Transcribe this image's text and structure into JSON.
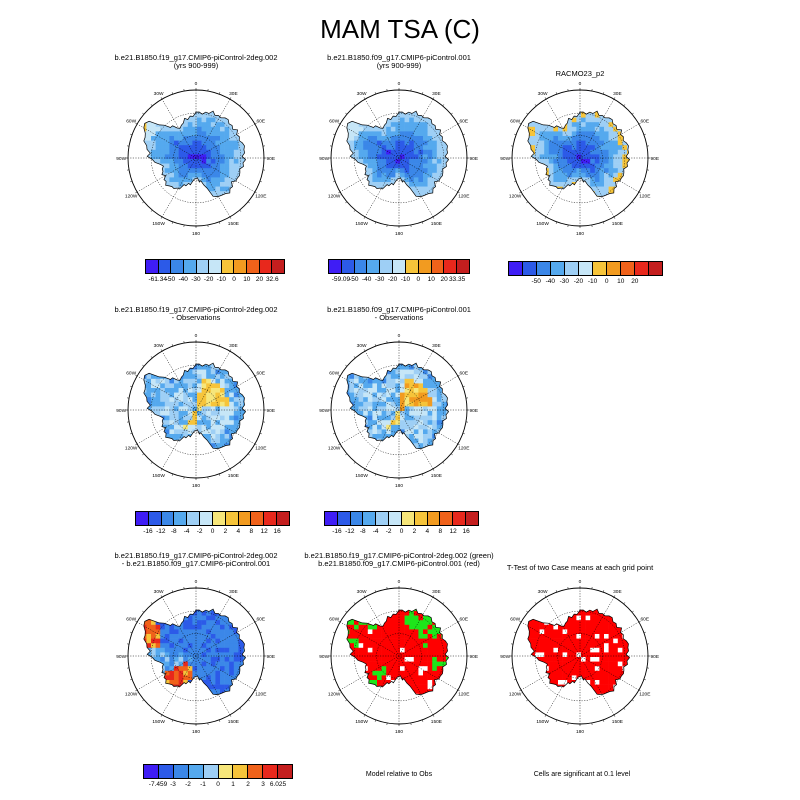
{
  "page": {
    "title": "MAM TSA (C)"
  },
  "palettes": {
    "abs": [
      "#3f1df5",
      "#2c5ae8",
      "#3b87e8",
      "#55a9ee",
      "#9ecff5",
      "#c6e6f7",
      "#f6c43a",
      "#f29b20",
      "#f0621a",
      "#e8281c",
      "#c41e1e"
    ],
    "diff": [
      "#3f1df5",
      "#2c5ae8",
      "#3b87e8",
      "#55a9ee",
      "#9ecff5",
      "#c6e6f7",
      "#f6e67a",
      "#f6c43a",
      "#f29b20",
      "#f0621a",
      "#e8281c",
      "#c41e1e"
    ],
    "ttest": [
      "#3f1df5",
      "#2c5ae8",
      "#3b87e8",
      "#55a9ee",
      "#9ecff5",
      "#f6e67a",
      "#f6c43a",
      "#f0621a",
      "#e8281c",
      "#c41e1e"
    ]
  },
  "chart_data": [
    {
      "type": "heatmap",
      "map": "polar-stereographic-south",
      "title_lines": [
        "b.e21.B1850.f19_g17.CMIP6-piControl-2deg.002",
        "(yrs 900-999)"
      ],
      "field": "model1",
      "colorbar": {
        "palette": "abs",
        "labels": [
          "-61.34",
          "-50",
          "-40",
          "-30",
          "-20",
          "-10",
          "0",
          "10",
          "20",
          "32.6"
        ]
      },
      "lon_labels": [
        "0",
        "30E",
        "60E",
        "90E",
        "120E",
        "150E",
        "180",
        "150W",
        "120W",
        "90W",
        "60W",
        "30W"
      ]
    },
    {
      "type": "heatmap",
      "map": "polar-stereographic-south",
      "title_lines": [
        "b.e21.B1850.f09_g17.CMIP6-piControl.001",
        "(yrs 900-999)"
      ],
      "field": "model2",
      "colorbar": {
        "palette": "abs",
        "labels": [
          "-59.09",
          "-50",
          "-40",
          "-30",
          "-20",
          "-10",
          "0",
          "10",
          "20",
          "33.35"
        ]
      },
      "lon_labels": [
        "0",
        "30E",
        "60E",
        "90E",
        "120E",
        "150E",
        "180",
        "150W",
        "120W",
        "90W",
        "60W",
        "30W"
      ]
    },
    {
      "type": "heatmap",
      "map": "polar-stereographic-south",
      "title_lines": [
        "RACMO23_p2"
      ],
      "field": "obs",
      "colorbar": {
        "palette": "abs",
        "labels": [
          "-50",
          "-40",
          "-30",
          "-20",
          "-10",
          "0",
          "10",
          "20"
        ]
      },
      "lon_labels": [
        "0",
        "30E",
        "60E",
        "90E",
        "120E",
        "150E",
        "180",
        "150W",
        "120W",
        "90W",
        "60W",
        "30W"
      ]
    },
    {
      "type": "heatmap",
      "map": "polar-stereographic-south",
      "title_lines": [
        "b.e21.B1850.f19_g17.CMIP6-piControl-2deg.002",
        " - Observations"
      ],
      "field": "bias1",
      "colorbar": {
        "palette": "diff",
        "labels": [
          "-16",
          "-12",
          "-8",
          "-4",
          "-2",
          "0",
          "2",
          "4",
          "8",
          "12",
          "16"
        ]
      },
      "lon_labels": [
        "0",
        "30E",
        "60E",
        "90E",
        "120E",
        "150E",
        "180",
        "150W",
        "120W",
        "90W",
        "60W",
        "30W"
      ]
    },
    {
      "type": "heatmap",
      "map": "polar-stereographic-south",
      "title_lines": [
        "b.e21.B1850.f09_g17.CMIP6-piControl.001",
        " - Observations"
      ],
      "field": "bias2",
      "colorbar": {
        "palette": "diff",
        "labels": [
          "-16",
          "-12",
          "-8",
          "-4",
          "-2",
          "0",
          "2",
          "4",
          "8",
          "12",
          "16"
        ]
      },
      "lon_labels": [
        "0",
        "30E",
        "60E",
        "90E",
        "120E",
        "150E",
        "180",
        "150W",
        "120W",
        "90W",
        "60W",
        "30W"
      ]
    },
    {
      "type": "heatmap",
      "map": "polar-stereographic-south",
      "title_lines": [
        "b.e21.B1850.f19_g17.CMIP6-piControl-2deg.002",
        " - b.e21.B1850.f09_g17.CMIP6-piControl.001"
      ],
      "field": "diff",
      "colorbar": {
        "palette": "ttest",
        "labels": [
          "-7.459",
          "-3",
          "-2",
          "-1",
          "0",
          "1",
          "2",
          "3",
          "6.025"
        ]
      },
      "lon_labels": [
        "0",
        "30E",
        "60E",
        "90E",
        "120E",
        "150E",
        "180",
        "150W",
        "120W",
        "90W",
        "60W",
        "30W"
      ]
    },
    {
      "type": "heatmap",
      "map": "polar-stereographic-south",
      "title_lines": [
        "b.e21.B1850.f19_g17.CMIP6-piControl-2deg.002 (green)",
        "b.e21.B1850.f09_g17.CMIP6-piControl.001 (red)"
      ],
      "field": "better",
      "note": "Model relative to Obs",
      "lon_labels": [
        "0",
        "30E",
        "60E",
        "90E",
        "120E",
        "150E",
        "180",
        "150W",
        "120W",
        "90W",
        "60W",
        "30W"
      ]
    },
    {
      "type": "heatmap",
      "map": "polar-stereographic-south",
      "title_lines": [
        "T-Test of two Case means at each grid point"
      ],
      "field": "sig",
      "note": "Cells are significant at 0.1 level",
      "lon_labels": [
        "0",
        "30E",
        "60E",
        "90E",
        "120E",
        "150E",
        "180",
        "150W",
        "120W",
        "90W",
        "60W",
        "30W"
      ]
    }
  ]
}
